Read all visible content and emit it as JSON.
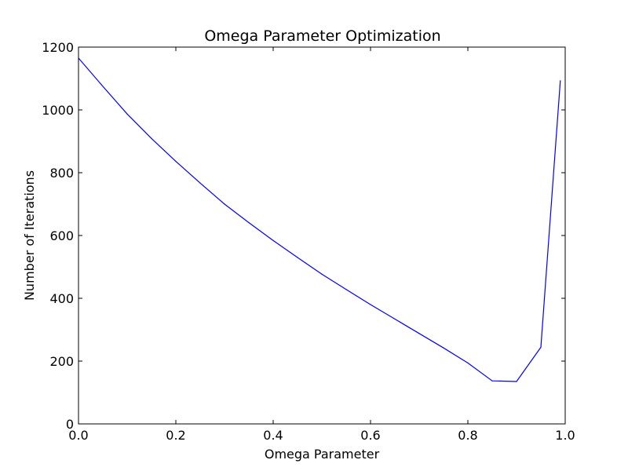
{
  "chart_data": {
    "type": "line",
    "title": "Omega Parameter Optimization",
    "xlabel": "Omega Parameter",
    "ylabel": "Number of Iterations",
    "xlim": [
      0.0,
      1.0
    ],
    "ylim": [
      0,
      1200
    ],
    "x_ticks": [
      0.0,
      0.2,
      0.4,
      0.6,
      0.8,
      1.0
    ],
    "x_tick_labels": [
      "0.0",
      "0.2",
      "0.4",
      "0.6",
      "0.8",
      "1.0"
    ],
    "y_ticks": [
      0,
      200,
      400,
      600,
      800,
      1000,
      1200
    ],
    "y_tick_labels": [
      "0",
      "200",
      "400",
      "600",
      "800",
      "1000",
      "1200"
    ],
    "grid": false,
    "legend": null,
    "series": [
      {
        "color": "#0000ff",
        "x": [
          0.0,
          0.05,
          0.1,
          0.15,
          0.2,
          0.25,
          0.3,
          0.35,
          0.4,
          0.45,
          0.5,
          0.55,
          0.6,
          0.65,
          0.7,
          0.75,
          0.8,
          0.85,
          0.9,
          0.95,
          0.99
        ],
        "y": [
          1165,
          1075,
          987,
          909,
          836,
          767,
          700,
          641,
          584,
          530,
          477,
          428,
          380,
          334,
          288,
          242,
          194,
          137,
          135,
          244,
          1093
        ]
      }
    ]
  }
}
